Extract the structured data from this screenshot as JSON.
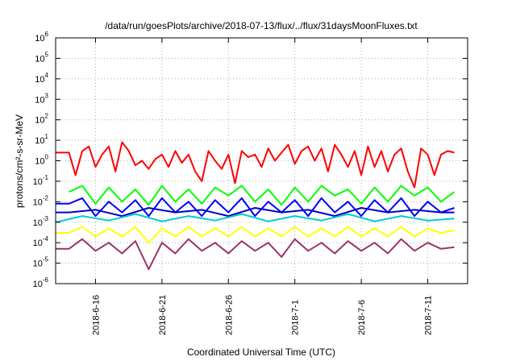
{
  "chart_data": {
    "type": "line",
    "title": "/data/run/goesPlots/archive/2018-07-13/flux/../flux/31daysMoonFluxes.txt",
    "xlabel": "Coordinated Universal Time (UTC)",
    "ylabel": "protons/cm²-s-sr-MeV",
    "yscale": "log",
    "ylim": [
      1e-06,
      1000000.0
    ],
    "xlim": [
      "2018-06-13",
      "2018-07-14"
    ],
    "x_ticks": [
      "2018-6-16",
      "2018-6-21",
      "2018-6-26",
      "2018-7-1",
      "2018-7-6",
      "2018-7-11"
    ],
    "y_ticks": [
      {
        "base": "10",
        "exp": "-6"
      },
      {
        "base": "10",
        "exp": "-5"
      },
      {
        "base": "10",
        "exp": "-4"
      },
      {
        "base": "10",
        "exp": "-3"
      },
      {
        "base": "10",
        "exp": "-2"
      },
      {
        "base": "10",
        "exp": "-1"
      },
      {
        "base": "10",
        "exp": "0"
      },
      {
        "base": "10",
        "exp": "1"
      },
      {
        "base": "10",
        "exp": "2"
      },
      {
        "base": "10",
        "exp": "3"
      },
      {
        "base": "10",
        "exp": "4"
      },
      {
        "base": "10",
        "exp": "5"
      },
      {
        "base": "10",
        "exp": "6"
      }
    ],
    "grid": true,
    "series": [
      {
        "color": "#ff0000",
        "baseline": 2.5,
        "start": "2018-06-14",
        "low": 0.1,
        "high": 10,
        "points": [
          [
            13.0,
            2.5
          ],
          [
            14.0,
            2.5
          ],
          [
            14.5,
            0.2
          ],
          [
            15.0,
            3
          ],
          [
            15.5,
            5
          ],
          [
            16.0,
            0.5
          ],
          [
            16.5,
            2
          ],
          [
            17.0,
            5
          ],
          [
            17.5,
            0.3
          ],
          [
            18.0,
            8
          ],
          [
            18.5,
            3
          ],
          [
            19.0,
            0.6
          ],
          [
            19.5,
            1
          ],
          [
            20.0,
            0.4
          ],
          [
            20.5,
            1.2
          ],
          [
            21.0,
            2
          ],
          [
            21.5,
            0.5
          ],
          [
            22.0,
            3
          ],
          [
            22.5,
            0.8
          ],
          [
            23.0,
            2
          ],
          [
            23.5,
            0.3
          ],
          [
            24.0,
            0.1
          ],
          [
            24.5,
            3
          ],
          [
            25.0,
            1
          ],
          [
            25.5,
            0.4
          ],
          [
            26.0,
            2
          ],
          [
            26.5,
            0.08
          ],
          [
            27.0,
            3
          ],
          [
            27.5,
            1.5
          ],
          [
            28.0,
            2
          ],
          [
            28.5,
            0.5
          ],
          [
            29.0,
            4
          ],
          [
            29.5,
            1
          ],
          [
            30.0,
            2.5
          ],
          [
            30.5,
            6
          ],
          [
            31.0,
            0.7
          ],
          [
            31.5,
            3
          ],
          [
            32.0,
            5
          ],
          [
            32.5,
            1
          ],
          [
            33.0,
            4
          ],
          [
            33.5,
            0.3
          ],
          [
            34.0,
            6
          ],
          [
            34.5,
            2
          ],
          [
            35.0,
            0.5
          ],
          [
            35.5,
            3
          ],
          [
            36.0,
            0.2
          ],
          [
            36.5,
            5
          ],
          [
            37.0,
            0.5
          ],
          [
            37.5,
            3
          ],
          [
            38.0,
            0.3
          ],
          [
            38.5,
            2
          ],
          [
            39.0,
            4
          ],
          [
            39.5,
            0.3
          ],
          [
            40.0,
            0.05
          ],
          [
            40.5,
            4
          ],
          [
            41.0,
            2
          ],
          [
            41.5,
            0.2
          ],
          [
            42.0,
            2
          ],
          [
            42.5,
            3
          ],
          [
            43.0,
            2.5
          ]
        ]
      },
      {
        "color": "#00ff00",
        "baseline": 0.03,
        "start": "2018-06-14",
        "low": 0.003,
        "high": 0.07,
        "points": [
          [
            14.0,
            0.03
          ],
          [
            15.0,
            0.06
          ],
          [
            16.0,
            0.008
          ],
          [
            17.0,
            0.05
          ],
          [
            18.0,
            0.01
          ],
          [
            19.0,
            0.04
          ],
          [
            20.0,
            0.007
          ],
          [
            21.0,
            0.06
          ],
          [
            22.0,
            0.01
          ],
          [
            23.0,
            0.04
          ],
          [
            24.0,
            0.008
          ],
          [
            25.0,
            0.05
          ],
          [
            26.0,
            0.02
          ],
          [
            27.0,
            0.06
          ],
          [
            28.0,
            0.01
          ],
          [
            29.0,
            0.04
          ],
          [
            30.0,
            0.007
          ],
          [
            31.0,
            0.05
          ],
          [
            32.0,
            0.01
          ],
          [
            33.0,
            0.06
          ],
          [
            34.0,
            0.02
          ],
          [
            35.0,
            0.04
          ],
          [
            36.0,
            0.008
          ],
          [
            37.0,
            0.05
          ],
          [
            38.0,
            0.01
          ],
          [
            39.0,
            0.06
          ],
          [
            40.0,
            0.02
          ],
          [
            41.0,
            0.05
          ],
          [
            42.0,
            0.01
          ],
          [
            43.0,
            0.03
          ]
        ]
      },
      {
        "color": "#0000ff",
        "baseline": 0.008,
        "start": "2018-06-14",
        "low": 0.001,
        "high": 0.02,
        "points": [
          [
            13.0,
            0.008
          ],
          [
            14.0,
            0.008
          ],
          [
            15.0,
            0.015
          ],
          [
            16.0,
            0.002
          ],
          [
            17.0,
            0.01
          ],
          [
            18.0,
            0.003
          ],
          [
            19.0,
            0.012
          ],
          [
            20.0,
            0.002
          ],
          [
            21.0,
            0.015
          ],
          [
            22.0,
            0.003
          ],
          [
            23.0,
            0.01
          ],
          [
            24.0,
            0.002
          ],
          [
            25.0,
            0.012
          ],
          [
            26.0,
            0.003
          ],
          [
            27.0,
            0.015
          ],
          [
            28.0,
            0.002
          ],
          [
            29.0,
            0.01
          ],
          [
            30.0,
            0.003
          ],
          [
            31.0,
            0.012
          ],
          [
            32.0,
            0.002
          ],
          [
            33.0,
            0.015
          ],
          [
            34.0,
            0.003
          ],
          [
            35.0,
            0.01
          ],
          [
            36.0,
            0.002
          ],
          [
            37.0,
            0.012
          ],
          [
            38.0,
            0.003
          ],
          [
            39.0,
            0.015
          ],
          [
            40.0,
            0.002
          ],
          [
            41.0,
            0.01
          ],
          [
            42.0,
            0.003
          ],
          [
            43.0,
            0.005
          ]
        ]
      },
      {
        "color": "#0000cc",
        "baseline": 0.003,
        "start": "2018-06-14",
        "low": 0.0015,
        "high": 0.006,
        "points": [
          [
            13.0,
            0.003
          ],
          [
            14.0,
            0.003
          ],
          [
            16.0,
            0.004
          ],
          [
            18.0,
            0.002
          ],
          [
            20.0,
            0.005
          ],
          [
            22.0,
            0.003
          ],
          [
            24.0,
            0.004
          ],
          [
            26.0,
            0.002
          ],
          [
            28.0,
            0.005
          ],
          [
            30.0,
            0.003
          ],
          [
            32.0,
            0.004
          ],
          [
            34.0,
            0.002
          ],
          [
            36.0,
            0.005
          ],
          [
            38.0,
            0.003
          ],
          [
            40.0,
            0.004
          ],
          [
            42.0,
            0.003
          ],
          [
            43.0,
            0.003
          ]
        ]
      },
      {
        "color": "#00cccc",
        "baseline": 0.001,
        "start": "2018-06-14",
        "low": 0.0008,
        "high": 0.003,
        "points": [
          [
            13.0,
            0.001
          ],
          [
            15.0,
            0.002
          ],
          [
            17.0,
            0.0012
          ],
          [
            19.0,
            0.0025
          ],
          [
            21.0,
            0.0011
          ],
          [
            23.0,
            0.002
          ],
          [
            25.0,
            0.0012
          ],
          [
            27.0,
            0.0025
          ],
          [
            29.0,
            0.0011
          ],
          [
            31.0,
            0.002
          ],
          [
            33.0,
            0.0012
          ],
          [
            35.0,
            0.0025
          ],
          [
            37.0,
            0.0011
          ],
          [
            39.0,
            0.002
          ],
          [
            41.0,
            0.0012
          ],
          [
            43.0,
            0.0015
          ]
        ]
      },
      {
        "color": "#ffff00",
        "baseline": 0.0003,
        "start": "2018-06-14",
        "low": 0.0001,
        "high": 0.0008,
        "points": [
          [
            13.0,
            0.0003
          ],
          [
            14.0,
            0.0003
          ],
          [
            15.0,
            0.0006
          ],
          [
            16.0,
            0.0002
          ],
          [
            17.0,
            0.0005
          ],
          [
            18.0,
            0.0002
          ],
          [
            19.0,
            0.0006
          ],
          [
            20.0,
            0.0001
          ],
          [
            21.0,
            0.0005
          ],
          [
            22.0,
            0.0002
          ],
          [
            23.0,
            0.0006
          ],
          [
            24.0,
            0.0002
          ],
          [
            25.0,
            0.0005
          ],
          [
            26.0,
            0.0002
          ],
          [
            27.0,
            0.0006
          ],
          [
            28.0,
            0.0002
          ],
          [
            29.0,
            0.0005
          ],
          [
            30.0,
            0.0002
          ],
          [
            31.0,
            0.0006
          ],
          [
            32.0,
            0.0002
          ],
          [
            33.0,
            0.0005
          ],
          [
            34.0,
            0.0002
          ],
          [
            35.0,
            0.0006
          ],
          [
            36.0,
            0.0002
          ],
          [
            37.0,
            0.0005
          ],
          [
            38.0,
            0.0002
          ],
          [
            39.0,
            0.0006
          ],
          [
            40.0,
            0.0002
          ],
          [
            41.0,
            0.0005
          ],
          [
            42.0,
            0.0003
          ],
          [
            43.0,
            0.0004
          ]
        ]
      },
      {
        "color": "#993366",
        "baseline": 5e-05,
        "start": "2018-06-14",
        "low": 2e-05,
        "high": 0.0003,
        "points": [
          [
            13.0,
            5e-05
          ],
          [
            14.0,
            5e-05
          ],
          [
            15.0,
            0.00015
          ],
          [
            16.0,
            4e-05
          ],
          [
            17.0,
            0.0001
          ],
          [
            18.0,
            3e-05
          ],
          [
            19.0,
            0.00012
          ],
          [
            20.0,
            5e-06
          ],
          [
            21.0,
            0.0001
          ],
          [
            22.0,
            3e-05
          ],
          [
            23.0,
            0.00015
          ],
          [
            24.0,
            4e-05
          ],
          [
            25.0,
            0.0001
          ],
          [
            26.0,
            3e-05
          ],
          [
            27.0,
            0.00012
          ],
          [
            28.0,
            4e-05
          ],
          [
            29.0,
            0.0001
          ],
          [
            30.0,
            2e-05
          ],
          [
            31.0,
            0.00015
          ],
          [
            32.0,
            4e-05
          ],
          [
            33.0,
            0.0001
          ],
          [
            34.0,
            3e-05
          ],
          [
            35.0,
            0.00012
          ],
          [
            36.0,
            4e-05
          ],
          [
            37.0,
            0.0001
          ],
          [
            38.0,
            3e-05
          ],
          [
            39.0,
            0.00015
          ],
          [
            40.0,
            4e-05
          ],
          [
            41.0,
            0.0001
          ],
          [
            42.0,
            5e-05
          ],
          [
            43.0,
            6e-05
          ]
        ]
      }
    ]
  }
}
